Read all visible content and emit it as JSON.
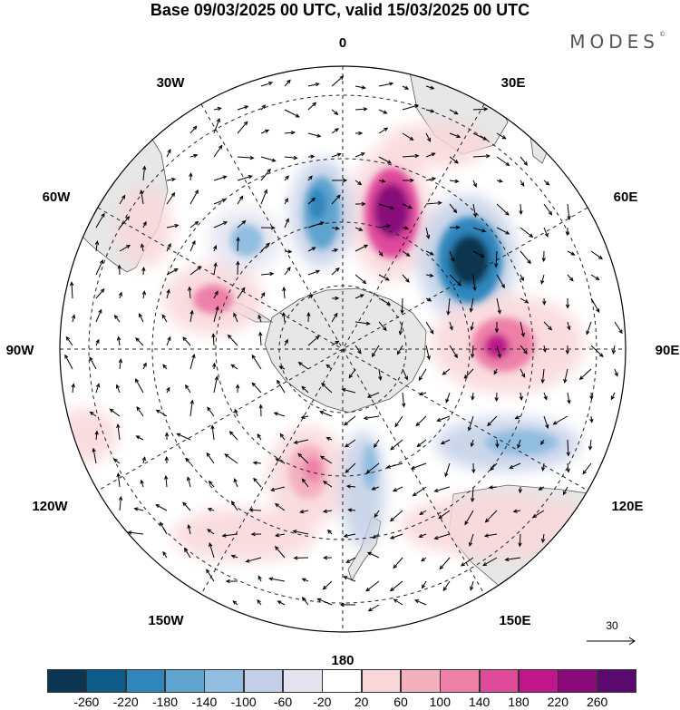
{
  "title": "Base 09/03/2025 00 UTC, valid 15/03/2025 00 UTC",
  "brand": "MODES",
  "brand_mark": "©",
  "longitude_labels": {
    "lon_0": "0",
    "lon_30e": "30E",
    "lon_60e": "60E",
    "lon_90e": "90E",
    "lon_120e": "120E",
    "lon_150e": "150E",
    "lon_180": "180",
    "lon_150w": "150W",
    "lon_120w": "120W",
    "lon_90w": "90W",
    "lon_60w": "60W",
    "lon_30w": "30W"
  },
  "reference_vector_label": "30",
  "colorbar": {
    "ticks": [
      "-260",
      "-220",
      "-180",
      "-140",
      "-100",
      "-60",
      "-20",
      "20",
      "60",
      "100",
      "140",
      "180",
      "220",
      "260"
    ],
    "colors": [
      "#0b3550",
      "#0c5b89",
      "#2f86bd",
      "#5ea4cf",
      "#91bde0",
      "#c2cfe6",
      "#e4e3f0",
      "#ffffff",
      "#f9d7d9",
      "#f4b1bd",
      "#ee80a8",
      "#e04a9b",
      "#c0168b",
      "#8a0a7c",
      "#5a0a6e"
    ]
  },
  "chart_data": {
    "type": "heatmap",
    "projection": "south polar stereographic",
    "grid": true,
    "anomaly_centers": [
      {
        "name": "positive-1",
        "lon": 15,
        "value": 260
      },
      {
        "name": "negative-1",
        "lon": 45,
        "value": -260
      },
      {
        "name": "positive-2",
        "lon": 80,
        "value": 180
      },
      {
        "name": "negative-2",
        "lon": -5,
        "value": -140
      },
      {
        "name": "positive-3",
        "lon": -85,
        "value": 140
      },
      {
        "name": "negative-3",
        "lon": -40,
        "value": -100
      },
      {
        "name": "positive-4",
        "lon": -160,
        "value": 140
      },
      {
        "name": "negative-4",
        "lon": 110,
        "value": -100
      }
    ]
  }
}
